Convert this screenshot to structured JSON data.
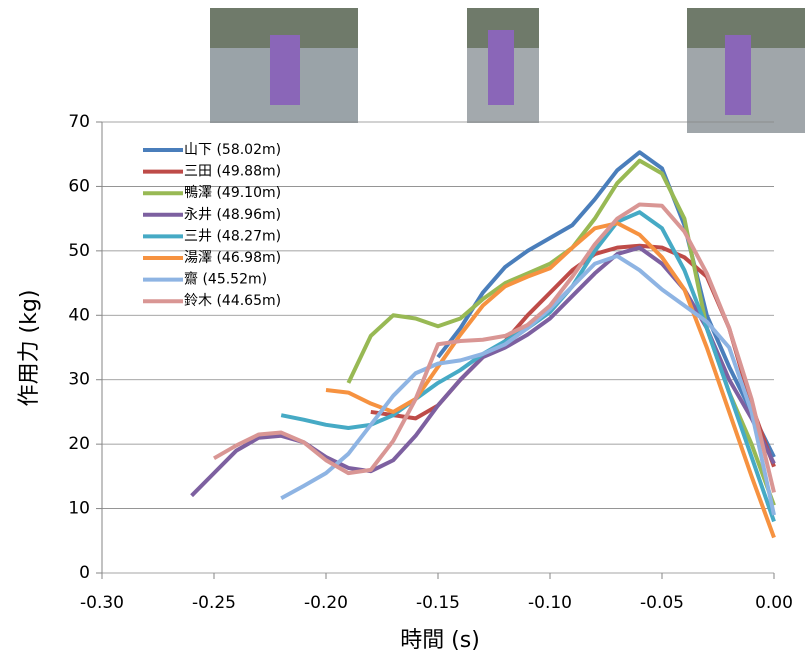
{
  "chart_data": {
    "type": "line",
    "x_label": "時間 (s)",
    "y_label": "作用力 (kg)",
    "x": [
      -0.26,
      -0.25,
      -0.24,
      -0.23,
      -0.22,
      -0.21,
      -0.2,
      -0.19,
      -0.18,
      -0.17,
      -0.16,
      -0.15,
      -0.14,
      -0.13,
      -0.12,
      -0.11,
      -0.1,
      -0.09,
      -0.08,
      -0.07,
      -0.06,
      -0.05,
      -0.04,
      -0.03,
      -0.02,
      -0.01,
      0
    ],
    "series": [
      {
        "name": "山下 (58.02m)",
        "color": "#4a7ebb",
        "values": [
          null,
          null,
          null,
          null,
          null,
          null,
          null,
          null,
          null,
          null,
          null,
          33.5,
          38,
          43.5,
          47.5,
          50,
          52,
          54,
          58,
          62.5,
          65.3,
          62.8,
          54,
          40,
          32,
          25,
          18
        ]
      },
      {
        "name": "三田 (49.88m)",
        "color": "#be4b48",
        "values": [
          null,
          null,
          null,
          null,
          null,
          null,
          null,
          null,
          25,
          24.5,
          24,
          26,
          30,
          33.5,
          36,
          40,
          43.5,
          47,
          49.5,
          50.5,
          50.8,
          50.5,
          49,
          46,
          38,
          26,
          16.5
        ]
      },
      {
        "name": "鴨澤 (49.10m)",
        "color": "#98b954",
        "values": [
          null,
          null,
          null,
          null,
          null,
          null,
          null,
          29.5,
          36.8,
          40,
          39.5,
          38.3,
          39.5,
          42.5,
          45,
          46.5,
          48,
          50.5,
          55,
          60.5,
          64,
          62,
          55,
          38,
          28,
          20,
          10.5
        ]
      },
      {
        "name": "永井 (48.96m)",
        "color": "#7d60a0",
        "values": [
          12,
          15.5,
          19,
          21,
          21.3,
          20.3,
          18,
          16.3,
          15.8,
          17.5,
          21.3,
          26,
          30,
          33.5,
          35,
          37,
          39.5,
          43,
          46.5,
          49.5,
          50.5,
          48,
          44,
          38,
          30,
          24,
          17
        ]
      },
      {
        "name": "三井 (48.27m)",
        "color": "#46aac5",
        "values": [
          null,
          null,
          null,
          null,
          24.5,
          23.8,
          23,
          22.5,
          23,
          24.5,
          27,
          29.5,
          31.5,
          34,
          36,
          38,
          40.5,
          44.5,
          50,
          54.5,
          56,
          53.5,
          47,
          38,
          28,
          18,
          8
        ]
      },
      {
        "name": "湯澤 (46.98m)",
        "color": "#f69240",
        "values": [
          null,
          null,
          null,
          null,
          null,
          null,
          28.4,
          28,
          26.3,
          25,
          27,
          32,
          37,
          41.5,
          44.5,
          46,
          47.3,
          50.5,
          53.5,
          54.3,
          52.5,
          49,
          44,
          35,
          25,
          15,
          5.5
        ]
      },
      {
        "name": "齋 (45.52m)",
        "color": "#8eb4e3",
        "values": [
          null,
          null,
          null,
          null,
          11.6,
          13.5,
          15.5,
          18.5,
          23,
          27.5,
          31,
          32.5,
          33,
          34,
          35.5,
          38,
          41,
          44.5,
          48,
          49.2,
          47,
          44,
          41.5,
          39,
          35,
          25,
          9
        ]
      },
      {
        "name": "鈴木 (44.65m)",
        "color": "#d99694",
        "values": [
          null,
          17.8,
          19.8,
          21.5,
          21.8,
          20.3,
          17.5,
          15.5,
          16,
          20.5,
          27,
          35.5,
          36,
          36.2,
          36.8,
          38.5,
          41.5,
          46,
          51,
          55,
          57.2,
          57,
          53,
          46.5,
          38,
          27,
          12.5
        ]
      }
    ],
    "xlim": [
      -0.3,
      0
    ],
    "ylim": [
      0,
      70
    ],
    "xticks": [
      {
        "value": -0.3,
        "label": "-0.30"
      },
      {
        "value": -0.25,
        "label": "-0.25"
      },
      {
        "value": -0.2,
        "label": "-0.20"
      },
      {
        "value": -0.15,
        "label": "-0.15"
      },
      {
        "value": -0.1,
        "label": "-0.10"
      },
      {
        "value": -0.05,
        "label": "-0.05"
      },
      {
        "value": 0,
        "label": "0.00"
      }
    ],
    "yticks": [
      0,
      10,
      20,
      30,
      40,
      50,
      60,
      70
    ],
    "grid": true,
    "legend": "top-left"
  }
}
